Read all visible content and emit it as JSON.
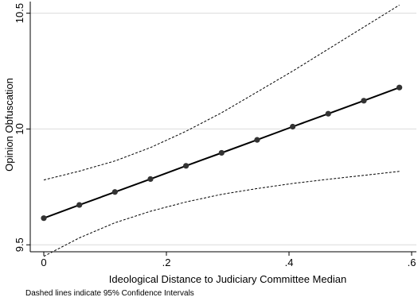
{
  "chart_data": {
    "type": "line",
    "title": "",
    "xlabel": "Ideological Distance to Judiciary Committee Median",
    "ylabel": "Opinion Obfuscation",
    "note": "Dashed lines indicate 95% Confidence Intervals",
    "xlim": [
      0,
      0.6
    ],
    "ylim": [
      9.47,
      10.55
    ],
    "xticks": [
      {
        "value": 0,
        "label": "0"
      },
      {
        "value": 0.2,
        "label": ".2"
      },
      {
        "value": 0.4,
        "label": ".4"
      },
      {
        "value": 0.6,
        "label": ".6"
      }
    ],
    "yticks": [
      {
        "value": 9.5,
        "label": "9.5"
      },
      {
        "value": 10,
        "label": "10"
      },
      {
        "value": 10.5,
        "label": "10.5"
      }
    ],
    "grid": "horizontal",
    "series": [
      {
        "role": "estimate",
        "style": "solid-with-markers",
        "x": [
          0,
          0.058,
          0.116,
          0.174,
          0.232,
          0.29,
          0.348,
          0.406,
          0.464,
          0.522,
          0.58
        ],
        "y": [
          9.615,
          9.672,
          9.728,
          9.784,
          9.841,
          9.897,
          9.953,
          10.01,
          10.066,
          10.122,
          10.179
        ]
      },
      {
        "role": "upper-ci",
        "style": "dashed",
        "x": [
          0,
          0.058,
          0.116,
          0.174,
          0.232,
          0.29,
          0.348,
          0.406,
          0.464,
          0.522,
          0.58
        ],
        "y": [
          9.78,
          9.818,
          9.862,
          9.92,
          9.99,
          10.07,
          10.16,
          10.25,
          10.345,
          10.44,
          10.535
        ]
      },
      {
        "role": "lower-ci",
        "style": "dashed",
        "x": [
          0,
          0.058,
          0.116,
          0.174,
          0.232,
          0.29,
          0.348,
          0.406,
          0.464,
          0.522,
          0.58
        ],
        "y": [
          9.45,
          9.53,
          9.595,
          9.645,
          9.685,
          9.718,
          9.743,
          9.765,
          9.783,
          9.8,
          9.817
        ]
      }
    ]
  }
}
